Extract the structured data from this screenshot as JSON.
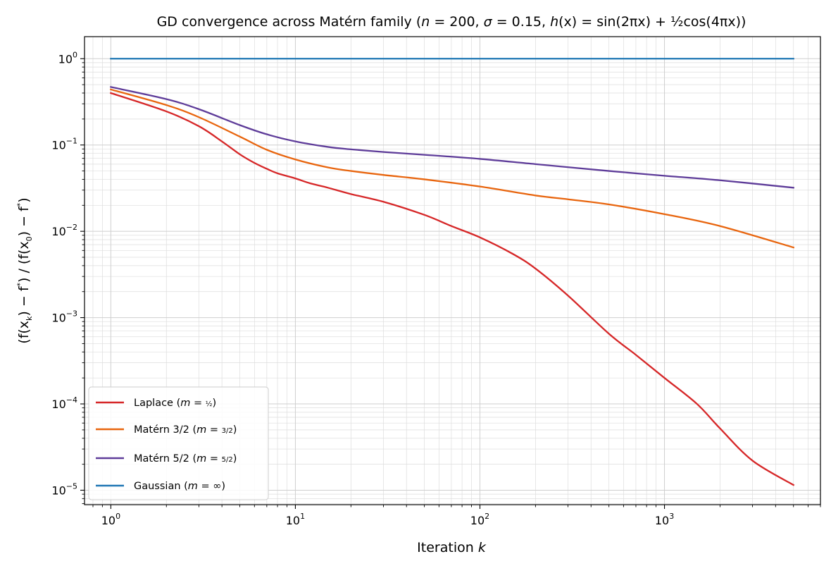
{
  "chart_data": {
    "type": "line",
    "title": "GD convergence across Matérn family (n = 200, σ = 0.15, h(x) = sin(2πx) + ½cos(4πx))",
    "title_parts": {
      "prefix": "GD convergence across Matérn family (",
      "n_label": "n",
      "n_value": " = 200, ",
      "sigma_label": "σ",
      "sigma_value": " = 0.15, ",
      "h_label": "h",
      "h_expr_a": "(x) = sin(2πx) + ",
      "h_half": "½",
      "h_expr_b": "cos(4πx))"
    },
    "xlabel_text": "Iteration ",
    "xlabel_var": "k",
    "ylabel": "(f(x_k) − f*) / (f(x_0) − f*)",
    "ylabel_parts": {
      "a": "(f(x",
      "sub_k": "k",
      "b": ") − f",
      "star1": "*",
      "c": ") / (f(x",
      "sub_0": "0",
      "d": ") − f",
      "star2": "*",
      "e": ")"
    },
    "x_scale": "log",
    "y_scale": "log",
    "xlim": [
      0.72,
      7000
    ],
    "ylim": [
      6.8e-06,
      1.8
    ],
    "x_ticks": [
      {
        "base": "10",
        "exp": "0",
        "value": 1
      },
      {
        "base": "10",
        "exp": "1",
        "value": 10
      },
      {
        "base": "10",
        "exp": "2",
        "value": 100
      },
      {
        "base": "10",
        "exp": "3",
        "value": 1000
      }
    ],
    "y_ticks": [
      {
        "base": "10",
        "exp": "0",
        "value": 1
      },
      {
        "base": "10",
        "exp": "−1",
        "value": 0.1
      },
      {
        "base": "10",
        "exp": "−2",
        "value": 0.01
      },
      {
        "base": "10",
        "exp": "−3",
        "value": 0.001
      },
      {
        "base": "10",
        "exp": "−4",
        "value": 0.0001
      },
      {
        "base": "10",
        "exp": "−5",
        "value": 1e-05
      }
    ],
    "grid": true,
    "legend_position": "lower-left",
    "series": [
      {
        "name": "Laplace (m = ½)",
        "legend_a": "Laplace (",
        "legend_m": "m",
        "legend_b": " = ",
        "legend_frac": "½",
        "legend_c": ")",
        "color": "#d62728",
        "x": [
          1,
          2,
          3,
          4,
          5,
          6,
          7,
          8,
          10,
          12,
          15,
          20,
          30,
          50,
          70,
          100,
          150,
          200,
          300,
          500,
          700,
          1000,
          1500,
          2000,
          3000,
          5000
        ],
        "y": [
          0.4,
          0.245,
          0.165,
          0.11,
          0.078,
          0.062,
          0.053,
          0.047,
          0.041,
          0.036,
          0.032,
          0.027,
          0.022,
          0.0155,
          0.0115,
          0.0085,
          0.0055,
          0.0037,
          0.0018,
          0.00065,
          0.00037,
          0.0002,
          0.0001,
          5.2e-05,
          2.2e-05,
          1.15e-05
        ]
      },
      {
        "name": "Matérn 3/2 (m = 3/2)",
        "legend_a": "Matérn 3/2 (",
        "legend_m": "m",
        "legend_b": " = ",
        "legend_frac": "3/2",
        "legend_c": ")",
        "color": "#e8650e",
        "x": [
          1,
          2,
          3,
          5,
          7,
          10,
          15,
          20,
          30,
          50,
          100,
          200,
          300,
          500,
          1000,
          2000,
          5000
        ],
        "y": [
          0.44,
          0.29,
          0.21,
          0.125,
          0.088,
          0.068,
          0.055,
          0.05,
          0.045,
          0.04,
          0.033,
          0.026,
          0.0235,
          0.0205,
          0.0158,
          0.0115,
          0.0065
        ]
      },
      {
        "name": "Matérn 5/2 (m = 5/2)",
        "legend_a": "Matérn 5/2 (",
        "legend_m": "m",
        "legend_b": " = ",
        "legend_frac": "5/2",
        "legend_c": ")",
        "color": "#5e3c99",
        "x": [
          1,
          2,
          3,
          5,
          7,
          10,
          15,
          20,
          30,
          50,
          100,
          200,
          500,
          1000,
          2000,
          5000
        ],
        "y": [
          0.47,
          0.34,
          0.26,
          0.17,
          0.133,
          0.11,
          0.095,
          0.089,
          0.083,
          0.077,
          0.069,
          0.06,
          0.05,
          0.044,
          0.039,
          0.032
        ]
      },
      {
        "name": "Gaussian (m = ∞)",
        "legend_a": "Gaussian (",
        "legend_m": "m",
        "legend_b": " = ∞",
        "legend_frac": "",
        "legend_c": ")",
        "color": "#1f77b4",
        "x": [
          1,
          5000
        ],
        "y": [
          1.0,
          1.0
        ]
      }
    ]
  }
}
